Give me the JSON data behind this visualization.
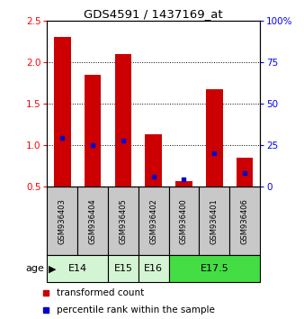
{
  "title": "GDS4591 / 1437169_at",
  "samples": [
    "GSM936403",
    "GSM936404",
    "GSM936405",
    "GSM936402",
    "GSM936400",
    "GSM936401",
    "GSM936406"
  ],
  "transformed_counts": [
    2.3,
    1.85,
    2.1,
    1.13,
    0.57,
    1.67,
    0.85
  ],
  "percentile_ranks": [
    1.09,
    1.0,
    1.06,
    0.625,
    0.585,
    0.9,
    0.66
  ],
  "bar_bottom": 0.5,
  "ylim": [
    0.5,
    2.5
  ],
  "yticks_left": [
    0.5,
    1.0,
    1.5,
    2.0,
    2.5
  ],
  "yticks_right": [
    0,
    25,
    50,
    75,
    100
  ],
  "y_right_labels": [
    "0",
    "25",
    "50",
    "75",
    "100%"
  ],
  "age_groups": [
    {
      "label": "E14",
      "samples": [
        0,
        1
      ],
      "color": "#d4f5d4"
    },
    {
      "label": "E15",
      "samples": [
        2
      ],
      "color": "#d4f5d4"
    },
    {
      "label": "E16",
      "samples": [
        3
      ],
      "color": "#d4f5d4"
    },
    {
      "label": "E17.5",
      "samples": [
        4,
        5,
        6
      ],
      "color": "#44dd44"
    }
  ],
  "bar_color": "#cc0000",
  "percentile_color": "#0000cc",
  "label_bg_color": "#c8c8c8",
  "bar_width": 0.55,
  "legend_red": "transformed count",
  "legend_blue": "percentile rank within the sample"
}
